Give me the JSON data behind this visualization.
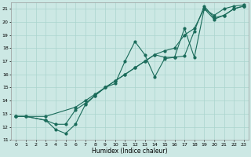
{
  "xlabel": "Humidex (Indice chaleur)",
  "bg_color": "#cce8e4",
  "grid_color": "#aad4ce",
  "line_color": "#1a6b5a",
  "xlim": [
    -0.5,
    23.5
  ],
  "ylim": [
    11,
    21.5
  ],
  "xticks": [
    0,
    1,
    2,
    3,
    4,
    5,
    6,
    7,
    8,
    9,
    10,
    11,
    12,
    13,
    14,
    15,
    16,
    17,
    18,
    19,
    20,
    21,
    22,
    23
  ],
  "yticks": [
    11,
    12,
    13,
    14,
    15,
    16,
    17,
    18,
    19,
    20,
    21
  ],
  "line1_x": [
    0,
    1,
    3,
    4,
    5,
    6,
    7,
    8,
    9,
    10,
    11,
    12,
    13,
    14,
    15,
    16,
    17,
    18,
    19,
    20,
    21,
    22,
    23
  ],
  "line1_y": [
    12.8,
    12.8,
    12.5,
    12.2,
    12.2,
    13.3,
    13.8,
    14.4,
    15.0,
    15.5,
    16.0,
    16.5,
    17.0,
    17.5,
    17.3,
    17.3,
    19.5,
    17.3,
    21.0,
    20.2,
    20.5,
    21.0,
    21.2
  ],
  "line2_x": [
    0,
    1,
    3,
    4,
    5,
    6,
    7,
    8,
    9,
    10,
    11,
    12,
    13,
    14,
    15,
    16,
    17,
    18,
    19,
    20,
    21,
    22,
    23
  ],
  "line2_y": [
    12.8,
    12.8,
    12.5,
    11.8,
    11.5,
    12.2,
    13.7,
    14.4,
    15.0,
    15.3,
    17.0,
    18.5,
    17.5,
    15.8,
    17.2,
    17.3,
    17.4,
    19.3,
    21.2,
    20.3,
    20.5,
    21.0,
    21.2
  ],
  "line3_x": [
    0,
    3,
    6,
    7,
    8,
    9,
    10,
    11,
    12,
    13,
    14,
    15,
    16,
    17,
    18,
    19,
    20,
    21,
    22,
    23
  ],
  "line3_y": [
    12.8,
    12.8,
    13.5,
    14.0,
    14.5,
    15.0,
    15.5,
    16.0,
    16.5,
    17.0,
    17.5,
    17.8,
    18.0,
    19.0,
    19.5,
    21.0,
    20.5,
    21.0,
    21.2,
    21.3
  ]
}
